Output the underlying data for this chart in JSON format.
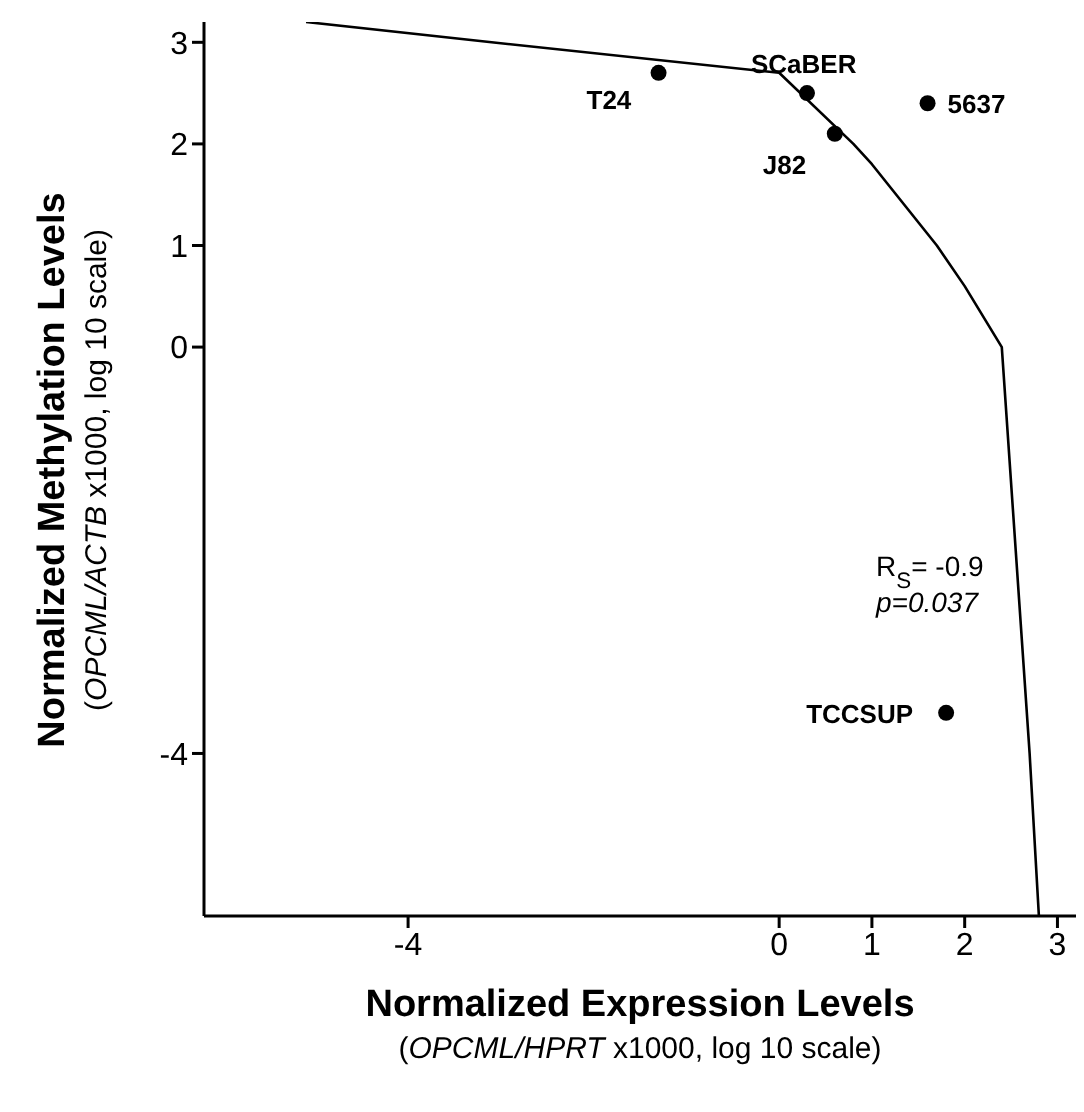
{
  "chart_data": {
    "type": "scatter",
    "xlabel": "Normalized Expression Levels\n(OPCML/HPRT x1000, log 10 scale)",
    "ylabel": "Normalized Methylation Levels\n(OPCML/ACTB x1000, log 10 scale)",
    "xlim": [
      -6.2,
      3.2
    ],
    "xticks": [
      -4,
      0,
      1,
      2,
      3
    ],
    "ylim": [
      -5.6,
      3.2
    ],
    "yticks": [
      -4,
      0,
      1,
      2,
      3
    ],
    "series": [
      {
        "name": "T24",
        "color": "#000000",
        "x": [
          -1.3
        ],
        "values": [
          2.7
        ]
      },
      {
        "name": "SCaBER",
        "color": "#000000",
        "x": [
          0.3
        ],
        "values": [
          2.5
        ]
      },
      {
        "name": "5637",
        "color": "#000000",
        "x": [
          1.6
        ],
        "values": [
          2.4
        ]
      },
      {
        "name": "J82",
        "color": "#000000",
        "x": [
          0.6
        ],
        "values": [
          2.1
        ]
      },
      {
        "name": "TCCSUP",
        "color": "#000000",
        "x": [
          1.8
        ],
        "values": [
          -3.6
        ]
      },
      {
        "type": "line",
        "marker": "none",
        "color": "#000000",
        "x": [
          -5.1,
          -3.1,
          0,
          0.8,
          1,
          1.7,
          2,
          2.4,
          2.7,
          2.8
        ],
        "values": [
          3.2,
          3,
          2.7,
          2,
          1.8,
          1,
          0.6,
          0,
          -4,
          -5.6
        ]
      }
    ],
    "annotations": [
      "R$_{S}$= -0.9",
      "p=0.037"
    ],
    "marker": "circle",
    "legend": false,
    "grid": false
  }
}
